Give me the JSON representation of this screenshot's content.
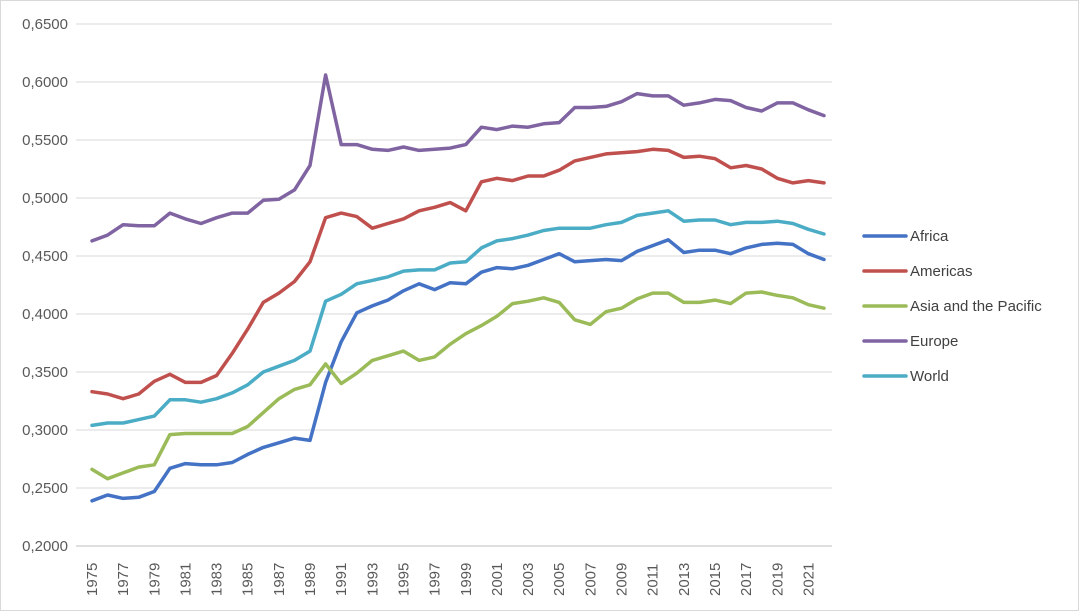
{
  "chart_data": {
    "type": "line",
    "title": "",
    "xlabel": "",
    "ylabel": "",
    "ylim": [
      0.2,
      0.65
    ],
    "y_ticks": [
      "0,2000",
      "0,2500",
      "0,3000",
      "0,3500",
      "0,4000",
      "0,4500",
      "0,5000",
      "0,5500",
      "0,6000",
      "0,6500"
    ],
    "x_ticks": [
      "1975",
      "1977",
      "1979",
      "1981",
      "1983",
      "1985",
      "1987",
      "1989",
      "1991",
      "1993",
      "1995",
      "1997",
      "1999",
      "2001",
      "2003",
      "2005",
      "2007",
      "2009",
      "2011",
      "2013",
      "2015",
      "2017",
      "2019",
      "2021"
    ],
    "grid": "horizontal",
    "legend_position": "right",
    "x": [
      1975,
      1976,
      1977,
      1978,
      1979,
      1980,
      1981,
      1982,
      1983,
      1984,
      1985,
      1986,
      1987,
      1988,
      1989,
      1990,
      1991,
      1992,
      1993,
      1994,
      1995,
      1996,
      1997,
      1998,
      1999,
      2000,
      2001,
      2002,
      2003,
      2004,
      2005,
      2006,
      2007,
      2008,
      2009,
      2010,
      2011,
      2012,
      2013,
      2014,
      2015,
      2016,
      2017,
      2018,
      2019,
      2020,
      2021,
      2022
    ],
    "series": [
      {
        "name": "Africa",
        "color": "#4472c4",
        "values": [
          0.239,
          0.244,
          0.241,
          0.242,
          0.247,
          0.267,
          0.271,
          0.27,
          0.27,
          0.272,
          0.279,
          0.285,
          0.289,
          0.293,
          0.291,
          0.341,
          0.376,
          0.401,
          0.407,
          0.412,
          0.42,
          0.426,
          0.421,
          0.427,
          0.426,
          0.436,
          0.44,
          0.439,
          0.442,
          0.447,
          0.452,
          0.445,
          0.446,
          0.447,
          0.446,
          0.454,
          0.459,
          0.464,
          0.453,
          0.455,
          0.455,
          0.452,
          0.457,
          0.46,
          0.461,
          0.46,
          0.452,
          0.447
        ]
      },
      {
        "name": "Americas",
        "color": "#c0504d",
        "values": [
          0.333,
          0.331,
          0.327,
          0.331,
          0.342,
          0.348,
          0.341,
          0.341,
          0.347,
          0.366,
          0.387,
          0.41,
          0.418,
          0.428,
          0.445,
          0.483,
          0.487,
          0.484,
          0.474,
          0.478,
          0.482,
          0.489,
          0.492,
          0.496,
          0.489,
          0.514,
          0.517,
          0.515,
          0.519,
          0.519,
          0.524,
          0.532,
          0.535,
          0.538,
          0.539,
          0.54,
          0.542,
          0.541,
          0.535,
          0.536,
          0.534,
          0.526,
          0.528,
          0.525,
          0.517,
          0.513,
          0.515,
          0.513
        ]
      },
      {
        "name": "Asia and the Pacific",
        "color": "#9bbb59",
        "values": [
          0.266,
          0.258,
          0.263,
          0.268,
          0.27,
          0.296,
          0.297,
          0.297,
          0.297,
          0.297,
          0.303,
          0.315,
          0.327,
          0.335,
          0.339,
          0.357,
          0.34,
          0.349,
          0.36,
          0.364,
          0.368,
          0.36,
          0.363,
          0.374,
          0.383,
          0.39,
          0.398,
          0.409,
          0.411,
          0.414,
          0.41,
          0.395,
          0.391,
          0.402,
          0.405,
          0.413,
          0.418,
          0.418,
          0.41,
          0.41,
          0.412,
          0.409,
          0.418,
          0.419,
          0.416,
          0.414,
          0.408,
          0.405
        ]
      },
      {
        "name": "Europe",
        "color": "#8064a2",
        "values": [
          0.463,
          0.468,
          0.477,
          0.476,
          0.476,
          0.487,
          0.482,
          0.478,
          0.483,
          0.487,
          0.487,
          0.498,
          0.499,
          0.507,
          0.528,
          0.606,
          0.546,
          0.546,
          0.542,
          0.541,
          0.544,
          0.541,
          0.542,
          0.543,
          0.546,
          0.561,
          0.559,
          0.562,
          0.561,
          0.564,
          0.565,
          0.578,
          0.578,
          0.579,
          0.583,
          0.59,
          0.588,
          0.588,
          0.58,
          0.582,
          0.585,
          0.584,
          0.578,
          0.575,
          0.582,
          0.582,
          0.576,
          0.571
        ]
      },
      {
        "name": "World",
        "color": "#4bacc6",
        "values": [
          0.304,
          0.306,
          0.306,
          0.309,
          0.312,
          0.326,
          0.326,
          0.324,
          0.327,
          0.332,
          0.339,
          0.35,
          0.355,
          0.36,
          0.368,
          0.411,
          0.417,
          0.426,
          0.429,
          0.432,
          0.437,
          0.438,
          0.438,
          0.444,
          0.445,
          0.457,
          0.463,
          0.465,
          0.468,
          0.472,
          0.474,
          0.474,
          0.474,
          0.477,
          0.479,
          0.485,
          0.487,
          0.489,
          0.48,
          0.481,
          0.481,
          0.477,
          0.479,
          0.479,
          0.48,
          0.478,
          0.473,
          0.469
        ]
      }
    ]
  }
}
